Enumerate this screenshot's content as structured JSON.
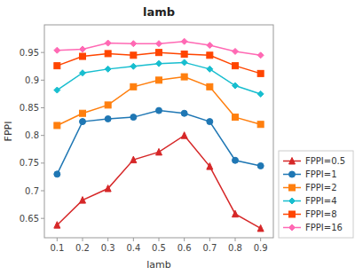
{
  "chart_data": {
    "type": "line",
    "title": "lamb",
    "xlabel": "lamb",
    "ylabel": "FPPI",
    "x": [
      0.1,
      0.2,
      0.3,
      0.4,
      0.5,
      0.6,
      0.7,
      0.8,
      0.9
    ],
    "series": [
      {
        "name": "FPPI=0.5",
        "color": "#d62728",
        "marker": "triangle",
        "values": [
          0.638,
          0.683,
          0.704,
          0.756,
          0.77,
          0.8,
          0.744,
          0.658,
          0.632
        ]
      },
      {
        "name": "FPPI=1",
        "color": "#1f77b4",
        "marker": "circle",
        "values": [
          0.73,
          0.825,
          0.83,
          0.833,
          0.845,
          0.84,
          0.825,
          0.755,
          0.745
        ]
      },
      {
        "name": "FPPI=2",
        "color": "#ff7f0e",
        "marker": "square",
        "values": [
          0.818,
          0.84,
          0.855,
          0.888,
          0.9,
          0.906,
          0.888,
          0.833,
          0.82
        ]
      },
      {
        "name": "FPPI=4",
        "color": "#17becf",
        "marker": "diamond",
        "values": [
          0.882,
          0.913,
          0.92,
          0.925,
          0.93,
          0.932,
          0.92,
          0.89,
          0.875
        ]
      },
      {
        "name": "FPPI=8",
        "color": "#ff4500",
        "marker": "square",
        "values": [
          0.926,
          0.943,
          0.948,
          0.945,
          0.95,
          0.947,
          0.945,
          0.926,
          0.912
        ]
      },
      {
        "name": "FPPI=16",
        "color": "#ff69b4",
        "marker": "diamond",
        "values": [
          0.954,
          0.956,
          0.967,
          0.966,
          0.966,
          0.97,
          0.963,
          0.952,
          0.945
        ]
      }
    ],
    "xlim": [
      0.05,
      0.95
    ],
    "ylim": [
      0.615,
      1.0
    ],
    "xticks": [
      0.1,
      0.2,
      0.3,
      0.4,
      0.5,
      0.6,
      0.7,
      0.8,
      0.9
    ],
    "yticks": [
      0.65,
      0.7,
      0.75,
      0.8,
      0.85,
      0.9,
      0.95
    ],
    "grid": false,
    "legend": "lower right"
  }
}
